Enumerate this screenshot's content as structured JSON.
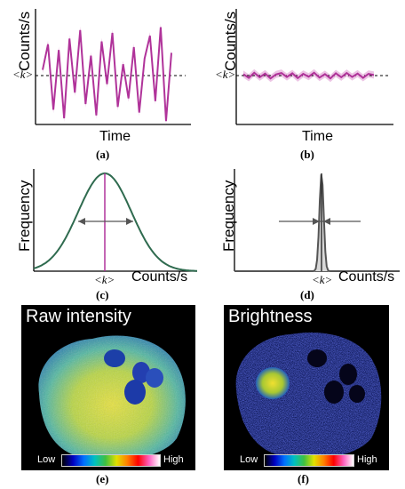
{
  "figure": {
    "panels": {
      "a": {
        "label": "(a)",
        "ylabel": "Counts/s",
        "xlabel": "Time",
        "mean_label": "<k>"
      },
      "b": {
        "label": "(b)",
        "ylabel": "Counts/s",
        "xlabel": "Time",
        "mean_label": "<k>"
      },
      "c": {
        "label": "(c)",
        "ylabel": "Frequency",
        "xlabel": "Counts/s",
        "mean_label": "<k>"
      },
      "d": {
        "label": "(d)",
        "ylabel": "Frequency",
        "xlabel": "Counts/s",
        "mean_label": "<k>"
      },
      "e": {
        "label": "(e)",
        "title": "Raw intensity",
        "scale_low": "Low",
        "scale_high": "High"
      },
      "f": {
        "label": "(f)",
        "title": "Brightness",
        "scale_low": "Low",
        "scale_high": "High"
      }
    },
    "colors": {
      "trace": "#b0339a",
      "band": "#e9b7df",
      "curve": "#2f6b4f",
      "narrow": "#555555"
    }
  },
  "chart_data": [
    {
      "type": "line",
      "panel": "a",
      "title": "",
      "xlabel": "Time",
      "ylabel": "Counts/s",
      "series": [
        {
          "values": [
            0.2,
            1.1,
            -1.2,
            0.9,
            -1.5,
            1.3,
            -0.6,
            1.6,
            -1.0,
            0.7,
            -1.4,
            1.2,
            -0.3,
            1.5,
            -1.1,
            0.4,
            -0.8,
            1.0,
            -1.3,
            0.6,
            1.4,
            -0.9,
            1.7,
            -1.6,
            0.8
          ]
        }
      ],
      "mean_line": 0
    },
    {
      "type": "line",
      "panel": "b",
      "title": "",
      "xlabel": "Time",
      "ylabel": "Counts/s",
      "series": [
        {
          "values": [
            0.05,
            -0.08,
            0.1,
            -0.06,
            0.07,
            -0.1,
            0.04,
            0.09,
            -0.05,
            0.08,
            -0.09,
            0.06,
            -0.04,
            0.1,
            -0.07,
            0.05,
            -0.1,
            0.08,
            -0.06,
            0.09,
            -0.05,
            0.07,
            -0.08,
            0.06,
            0.02
          ]
        }
      ],
      "mean_line": 0
    },
    {
      "type": "area",
      "panel": "c",
      "title": "",
      "xlabel": "Counts/s",
      "ylabel": "Frequency",
      "distribution": "gaussian",
      "relative_width": 1.0
    },
    {
      "type": "area",
      "panel": "d",
      "title": "",
      "xlabel": "Counts/s",
      "ylabel": "Frequency",
      "distribution": "gaussian",
      "relative_width": 0.06
    }
  ]
}
